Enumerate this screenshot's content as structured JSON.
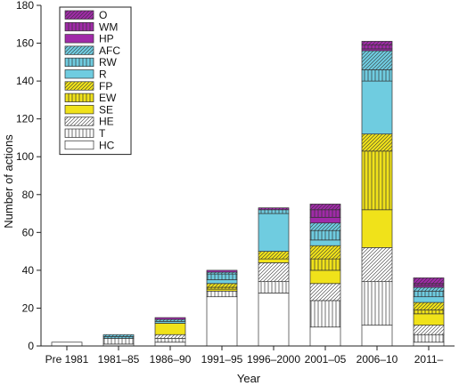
{
  "chart_data": {
    "type": "bar",
    "stacked": true,
    "title": "",
    "xlabel": "Year",
    "ylabel": "Number of actions",
    "ylim": [
      0,
      180
    ],
    "yticks": [
      0,
      20,
      40,
      60,
      80,
      100,
      120,
      140,
      160,
      180
    ],
    "grid": false,
    "legend_position": "top-left",
    "categories": [
      "Pre 1981",
      "1981–85",
      "1986–90",
      "1991–95",
      "1996–2000",
      "2001–05",
      "2006–10",
      "2011–"
    ],
    "series": [
      {
        "name": "HC",
        "color": "#ffffff",
        "pattern": "none",
        "values": [
          2,
          1,
          2,
          26,
          28,
          10,
          11,
          2
        ]
      },
      {
        "name": "T",
        "color": "#ffffff",
        "pattern": "vlines",
        "values": [
          0,
          3,
          2,
          3,
          6,
          14,
          23,
          4
        ]
      },
      {
        "name": "HE",
        "color": "#ffffff",
        "pattern": "diag",
        "values": [
          0,
          0,
          2,
          0,
          10,
          9,
          18,
          5
        ]
      },
      {
        "name": "SE",
        "color": "#f0e21a",
        "pattern": "none",
        "values": [
          0,
          0,
          6,
          1,
          2,
          7,
          20,
          6
        ]
      },
      {
        "name": "EW",
        "color": "#f0e21a",
        "pattern": "vlines",
        "values": [
          0,
          0,
          0,
          1,
          0,
          6,
          31,
          2
        ]
      },
      {
        "name": "FP",
        "color": "#f0e21a",
        "pattern": "diag",
        "values": [
          0,
          0,
          0,
          2,
          4,
          7,
          9,
          4
        ]
      },
      {
        "name": "R",
        "color": "#6fcce0",
        "pattern": "none",
        "values": [
          0,
          0,
          1,
          2,
          20,
          3,
          28,
          3
        ]
      },
      {
        "name": "RW",
        "color": "#6fcce0",
        "pattern": "vlines",
        "values": [
          0,
          1,
          0,
          3,
          2,
          5,
          6,
          3
        ]
      },
      {
        "name": "AFC",
        "color": "#6fcce0",
        "pattern": "diag",
        "values": [
          0,
          1,
          1,
          1,
          0,
          4,
          10,
          2
        ]
      },
      {
        "name": "HP",
        "color": "#a02aa8",
        "pattern": "none",
        "values": [
          0,
          0,
          1,
          1,
          0,
          3,
          1,
          1
        ]
      },
      {
        "name": "WM",
        "color": "#a02aa8",
        "pattern": "vlines",
        "values": [
          0,
          0,
          0,
          0,
          0,
          4,
          2,
          1
        ]
      },
      {
        "name": "O",
        "color": "#a02aa8",
        "pattern": "diag",
        "values": [
          0,
          0,
          0,
          0,
          1,
          3,
          2,
          3
        ]
      }
    ]
  }
}
